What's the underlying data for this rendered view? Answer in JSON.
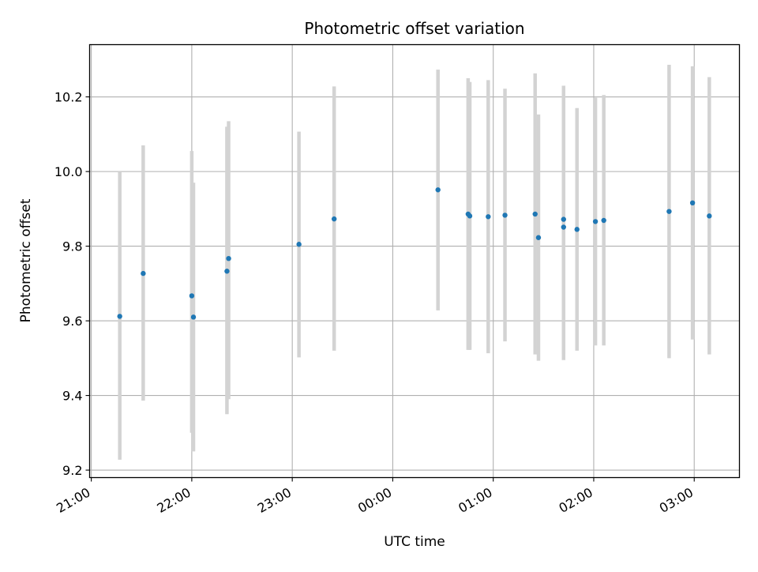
{
  "chart_data": {
    "type": "scatter",
    "title": "Photometric offset variation",
    "xlabel": "UTC time",
    "ylabel": "Photometric offset",
    "x_axis": {
      "kind": "time",
      "ticks": [
        {
          "time": "21:00",
          "label": "21:00"
        },
        {
          "time": "22:00",
          "label": "22:00"
        },
        {
          "time": "23:00",
          "label": "23:00"
        },
        {
          "time": "00:00",
          "label": "00:00"
        },
        {
          "time": "01:00",
          "label": "01:00"
        },
        {
          "time": "02:00",
          "label": "02:00"
        },
        {
          "time": "03:00",
          "label": "03:00"
        }
      ],
      "range": [
        "20:59",
        "03:27"
      ]
    },
    "y_axis": {
      "ticks": [
        9.2,
        9.4,
        9.6,
        9.8,
        10.0,
        10.2
      ],
      "tick_labels": [
        "9.2",
        "9.4",
        "9.6",
        "9.8",
        "10.0",
        "10.2"
      ],
      "range": [
        9.18,
        10.34
      ]
    },
    "grid": true,
    "point_color": "#1f77b4",
    "errorbar_color": "#d3d3d3",
    "points": [
      {
        "time": "21:17",
        "y": 9.612,
        "err_low": 9.228,
        "err_high": 10.0
      },
      {
        "time": "21:31",
        "y": 9.727,
        "err_low": 9.386,
        "err_high": 10.07
      },
      {
        "time": "22:00",
        "y": 9.667,
        "err_low": 9.3,
        "err_high": 10.055
      },
      {
        "time": "22:01",
        "y": 9.61,
        "err_low": 9.25,
        "err_high": 9.97
      },
      {
        "time": "22:21",
        "y": 9.733,
        "err_low": 9.35,
        "err_high": 10.12
      },
      {
        "time": "22:22",
        "y": 9.767,
        "err_low": 9.39,
        "err_high": 10.135
      },
      {
        "time": "23:04",
        "y": 9.805,
        "err_low": 9.502,
        "err_high": 10.107
      },
      {
        "time": "23:25",
        "y": 9.873,
        "err_low": 9.52,
        "err_high": 10.228
      },
      {
        "time": "00:27",
        "y": 9.951,
        "err_low": 9.628,
        "err_high": 10.273
      },
      {
        "time": "00:45",
        "y": 9.886,
        "err_low": 9.522,
        "err_high": 10.25
      },
      {
        "time": "00:46",
        "y": 9.881,
        "err_low": 9.522,
        "err_high": 10.24
      },
      {
        "time": "00:57",
        "y": 9.879,
        "err_low": 9.513,
        "err_high": 10.245
      },
      {
        "time": "01:07",
        "y": 9.883,
        "err_low": 9.545,
        "err_high": 10.222
      },
      {
        "time": "01:25",
        "y": 9.886,
        "err_low": 9.51,
        "err_high": 10.263
      },
      {
        "time": "01:27",
        "y": 9.823,
        "err_low": 9.493,
        "err_high": 10.153
      },
      {
        "time": "01:42",
        "y": 9.872,
        "err_low": 9.51,
        "err_high": 10.23
      },
      {
        "time": "01:42",
        "y": 9.851,
        "err_low": 9.495,
        "err_high": 10.2
      },
      {
        "time": "01:50",
        "y": 9.845,
        "err_low": 9.52,
        "err_high": 10.17
      },
      {
        "time": "02:01",
        "y": 9.866,
        "err_low": 9.534,
        "err_high": 10.198
      },
      {
        "time": "02:06",
        "y": 9.869,
        "err_low": 9.534,
        "err_high": 10.205
      },
      {
        "time": "02:45",
        "y": 9.893,
        "err_low": 9.5,
        "err_high": 10.286
      },
      {
        "time": "02:59",
        "y": 9.916,
        "err_low": 9.55,
        "err_high": 10.282
      },
      {
        "time": "03:09",
        "y": 9.881,
        "err_low": 9.51,
        "err_high": 10.253
      }
    ]
  }
}
